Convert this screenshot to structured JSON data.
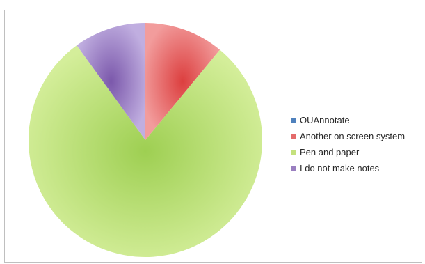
{
  "chart_data": {
    "type": "pie",
    "title": "",
    "categories": [
      "OUAnnotate",
      "Another on screen system",
      "Pen and paper",
      "I do not make notes"
    ],
    "values": [
      0,
      11,
      79,
      10
    ],
    "colors": [
      "#4f81bd",
      "#e46b6b",
      "#c4e17d",
      "#9a7fc0"
    ],
    "start_angle_deg": 0,
    "direction": "clockwise",
    "legend_position": "right"
  }
}
